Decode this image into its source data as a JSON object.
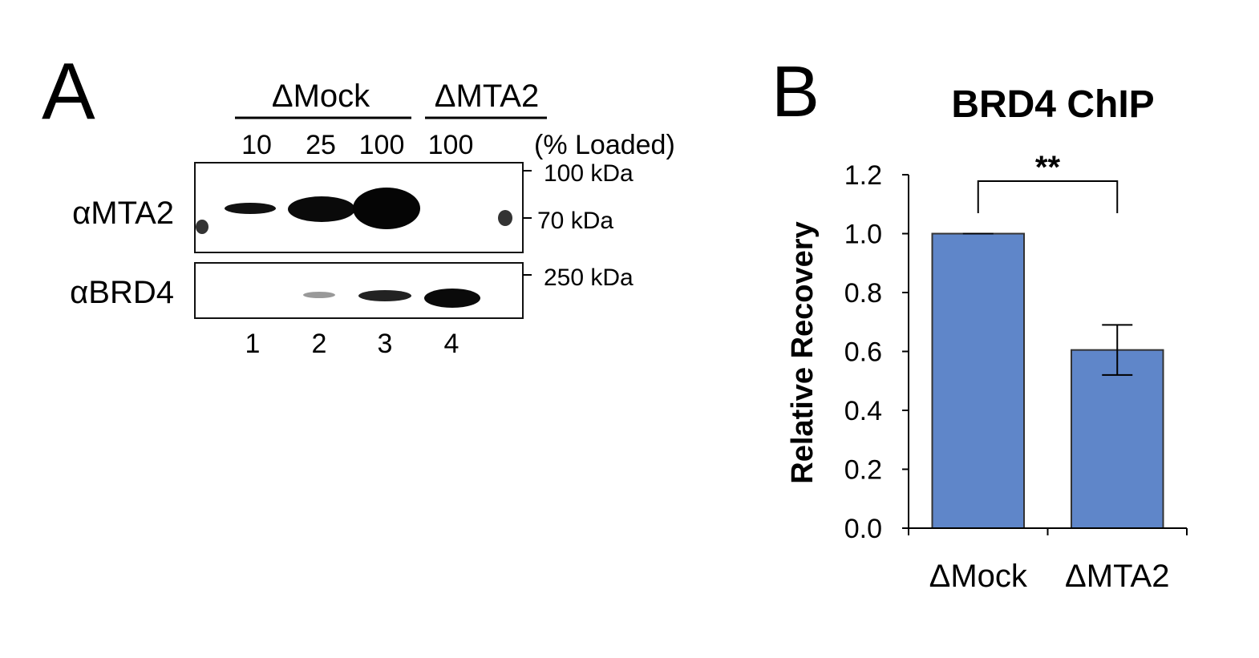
{
  "panel_a": {
    "letter": "A",
    "groups": [
      "ΔMock",
      "ΔMTA2"
    ],
    "loaded": [
      10,
      25,
      100,
      100
    ],
    "loaded_label": "(% Loaded)",
    "antibodies": [
      "αMTA2",
      "αBRD4"
    ],
    "markers": [
      "100 kDa",
      "70 kDa",
      "250 kDa"
    ],
    "lanes": [
      1,
      2,
      3,
      4
    ]
  },
  "chart_data": {
    "type": "bar",
    "letter": "B",
    "title": "BRD4 ChIP",
    "y_label": "Relative Recovery",
    "categories": [
      "ΔMock",
      "ΔMTA2"
    ],
    "values": [
      1.0,
      0.605
    ],
    "errors": [
      0,
      0.085
    ],
    "color": "#5f86c9",
    "annotation": "**",
    "ylim": [
      0,
      1.2
    ],
    "yticks": [
      {
        "value": 0,
        "label": "0.0"
      },
      0.2,
      0.4,
      0.6,
      0.8,
      {
        "value": 1,
        "label": "1.0"
      },
      1.2
    ]
  }
}
